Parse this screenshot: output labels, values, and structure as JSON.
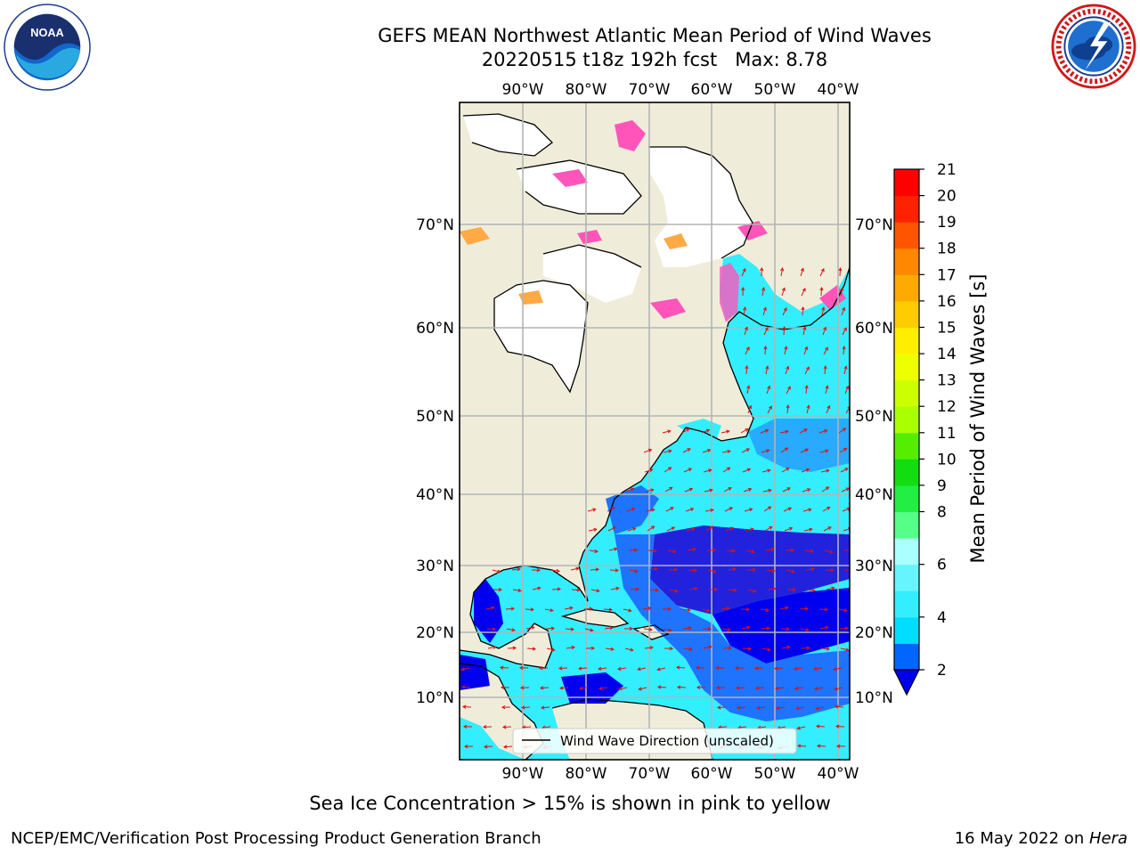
{
  "header": {
    "title_line1": "GEFS MEAN Northwest Atlantic Mean Period of Wind Waves",
    "title_line2": "20220515 t18z 192h fcst   Max: 8.78"
  },
  "logos": {
    "left": "noaa-logo",
    "left_text": "NOAA",
    "right": "nws-logo"
  },
  "map": {
    "lon_labels": [
      "90°W",
      "80°W",
      "70°W",
      "60°W",
      "50°W",
      "40°W"
    ],
    "lat_labels": [
      "70°N",
      "60°N",
      "50°N",
      "40°N",
      "30°N",
      "20°N",
      "10°N"
    ],
    "legend_label": "Wind Wave Direction (unscaled)",
    "colors": {
      "land": "#efedda",
      "ice": "#ffffff",
      "grid": "#b4b4b4",
      "arrow": "#dd1111",
      "sea_ice_pink": "#ff55bb",
      "sea_ice_orange": "#ffaa44"
    }
  },
  "colorbar": {
    "label": "Mean Period of Wind Waves [s]",
    "ticks": [
      "2",
      "4",
      "6",
      "8",
      "9",
      "10",
      "11",
      "12",
      "13",
      "14",
      "15",
      "16",
      "17",
      "18",
      "19",
      "20",
      "21"
    ],
    "colors": [
      "#0066ff",
      "#00ddff",
      "#33eeff",
      "#66f5ff",
      "#aaffff",
      "#55ff88",
      "#22ee44",
      "#11dd11",
      "#55ee00",
      "#aaff00",
      "#ccff00",
      "#eeff00",
      "#ffee00",
      "#ffcc00",
      "#ffaa00",
      "#ff8800",
      "#ff5500",
      "#ff2200",
      "#ff0000"
    ],
    "under_color": "#0000ee"
  },
  "footer": {
    "note": "Sea Ice Concentration > 15% is shown in pink to yellow",
    "left": "NCEP/EMC/Verification Post Processing Product Generation Branch",
    "date": "16 May 2022 on ",
    "host": "Hera"
  }
}
